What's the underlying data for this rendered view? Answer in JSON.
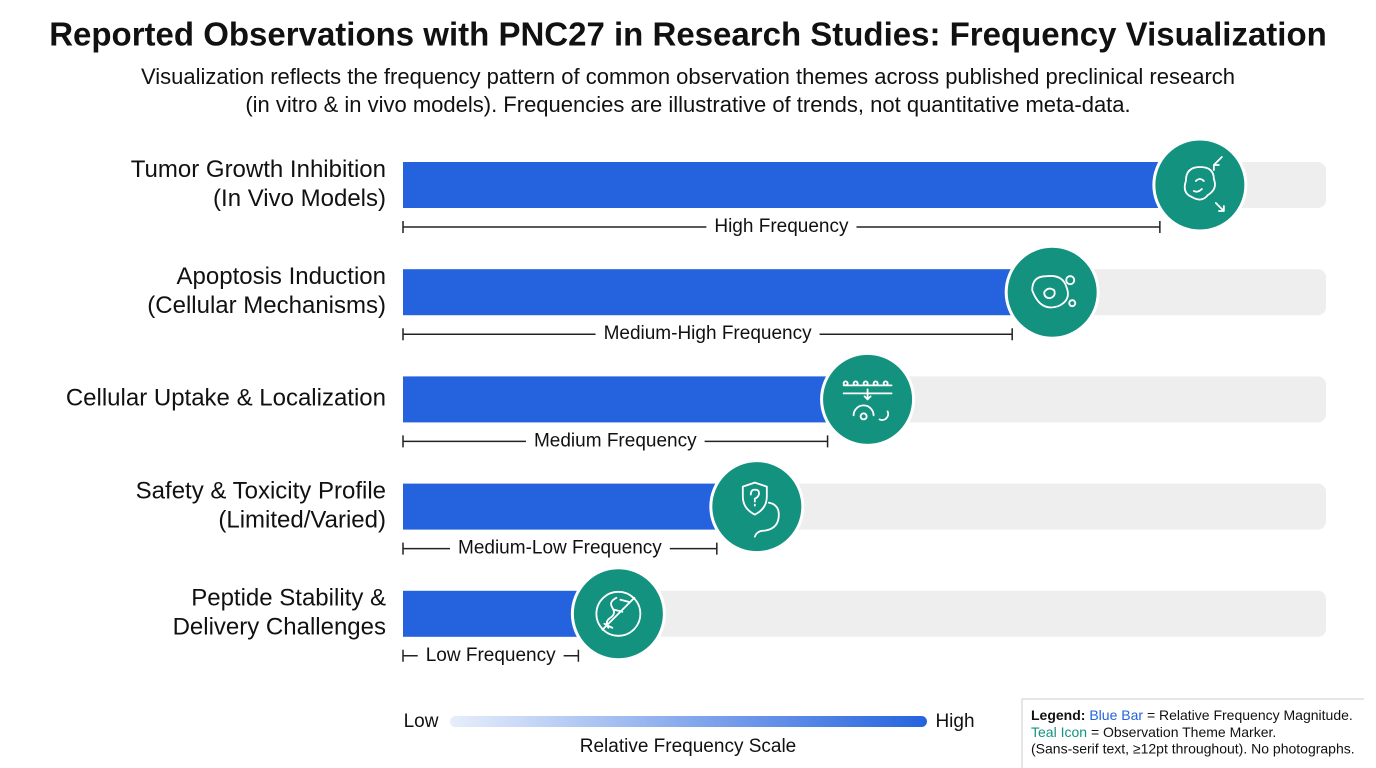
{
  "chart_data": {
    "type": "bar",
    "title": "Reported Observations with PNC27 in Research Studies: Frequency Visualization",
    "subtitle": [
      "Visualization reflects the frequency pattern of common observation themes across published preclinical research",
      "(in vitro & in vivo models). Frequencies are illustrative of trends, not quantitative meta-data."
    ],
    "categories": [
      [
        "Tumor Growth Inhibition",
        "(In Vivo Models)"
      ],
      [
        "Apoptosis Induction",
        "(Cellular Mechanisms)"
      ],
      [
        "Cellular Uptake & Localization"
      ],
      [
        "Safety & Toxicity Profile",
        "(Limited/Varied)"
      ],
      [
        "Peptide Stability &",
        "Delivery Challenges"
      ]
    ],
    "values": [
      82,
      66,
      46,
      34,
      19
    ],
    "bracket_labels": [
      "High Frequency",
      "Medium-High Frequency",
      "Medium Frequency",
      "Medium-Low Frequency",
      "Low Frequency"
    ],
    "color": "#2563de",
    "icon_color": "#13927f",
    "xlim": [
      0,
      100
    ],
    "scale": {
      "low": "Low",
      "high": "High",
      "title": "Relative Frequency Scale"
    },
    "legend": {
      "title": "Legend:",
      "items": [
        {
          "key": "Blue Bar",
          "text": "= Relative Frequency Magnitude."
        },
        {
          "key": "Teal Icon",
          "text": "= Observation Theme Marker."
        }
      ],
      "note": "(Sans-serif text, ≥12pt throughout). No photographs."
    }
  }
}
